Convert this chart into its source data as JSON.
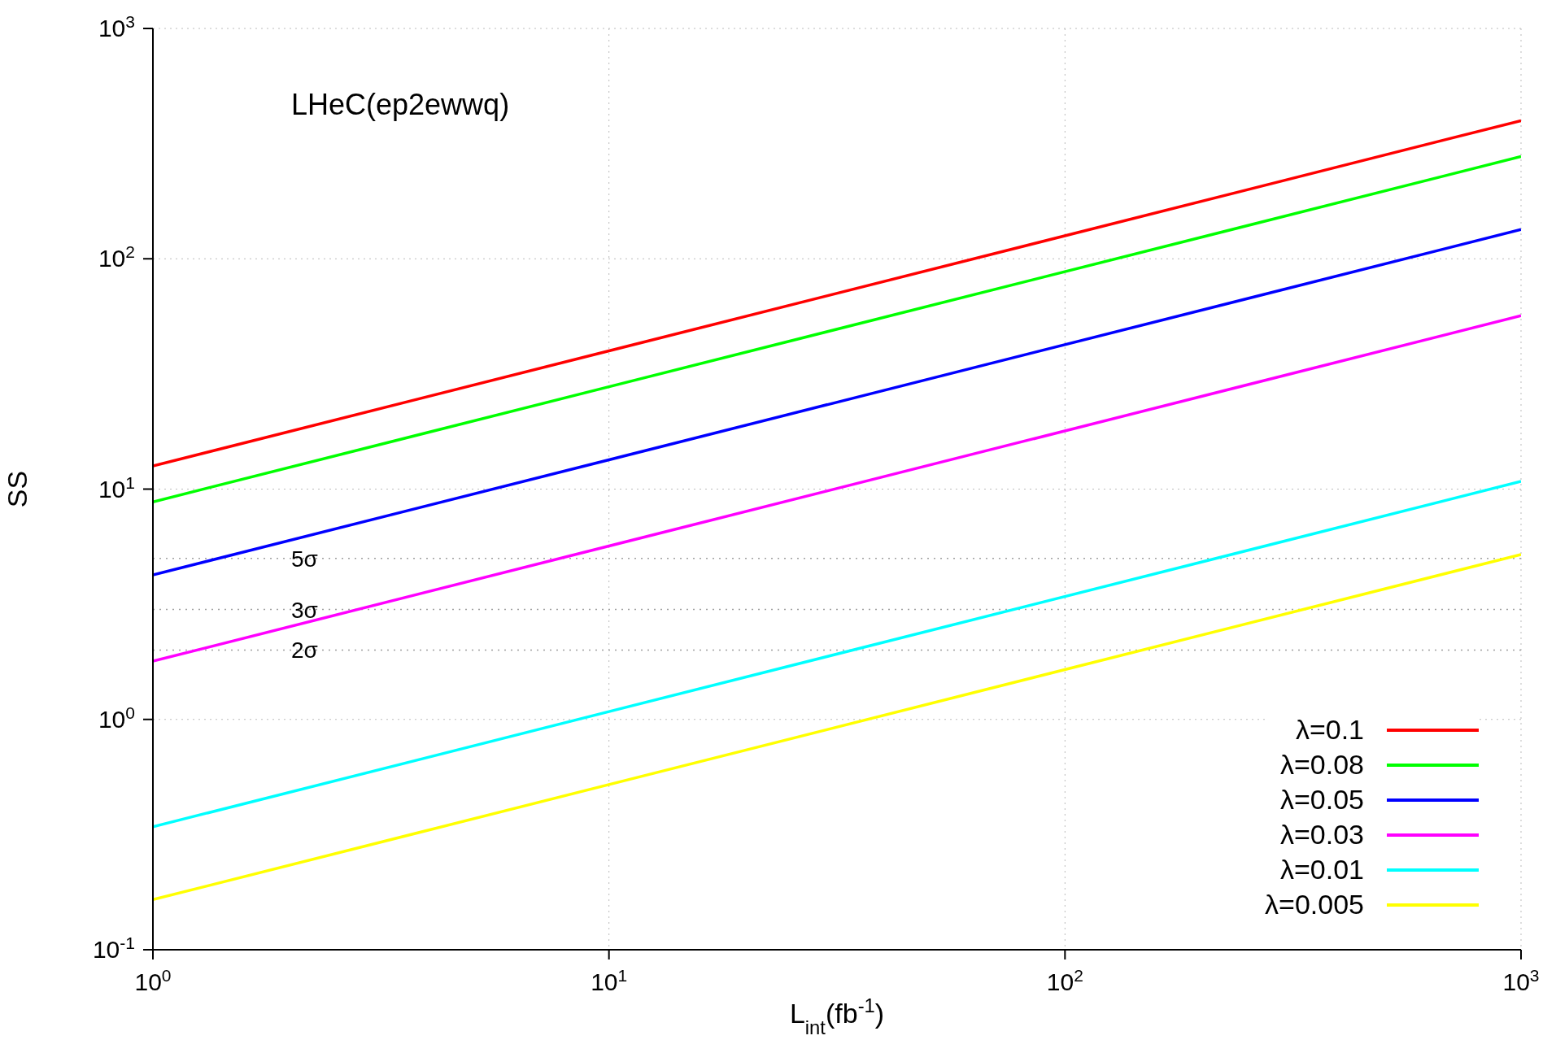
{
  "chart_data": {
    "type": "line",
    "xlabel": "L$_{int}$(fb$^{-1}$)",
    "ylabel": "SS",
    "annotations": [
      "LHeC(ep2ewwq)"
    ],
    "x": [
      1,
      1000
    ],
    "series": [
      {
        "name": "λ=0.1",
        "color": "#ff0000",
        "values": [
          12.6,
          398
        ]
      },
      {
        "name": "λ=0.08",
        "color": "#00ff00",
        "values": [
          8.8,
          278
        ]
      },
      {
        "name": "λ=0.05",
        "color": "#0000ff",
        "values": [
          4.24,
          134
        ]
      },
      {
        "name": "λ=0.03",
        "color": "#ff00ff",
        "values": [
          1.79,
          56.6
        ]
      },
      {
        "name": "λ=0.01",
        "color": "#00ffff",
        "values": [
          0.342,
          10.8
        ]
      },
      {
        "name": "λ=0.005",
        "color": "#ffff00",
        "values": [
          0.165,
          5.2
        ]
      }
    ],
    "ref_lines": [
      {
        "axis": "y",
        "value": 5,
        "label": "5σ",
        "color": "#a0a0a0",
        "line_style": "dotted"
      },
      {
        "axis": "y",
        "value": 3,
        "label": "3σ",
        "color": "#a0a0a0",
        "line_style": "dotted"
      },
      {
        "axis": "y",
        "value": 2,
        "label": "2σ",
        "color": "#a0a0a0",
        "line_style": "dotted"
      }
    ],
    "log": "xy",
    "xlim": [
      1,
      1000
    ],
    "ylim": [
      0.1,
      1000
    ],
    "xticks": [
      {
        "value": 1,
        "label": "10$^{0}$"
      },
      {
        "value": 10,
        "label": "10$^{1}$"
      },
      {
        "value": 100,
        "label": "10$^{2}$"
      },
      {
        "value": 1000,
        "label": "10$^{3}$"
      }
    ],
    "yticks": [
      {
        "value": 0.1,
        "label": "10$^{-1}$"
      },
      {
        "value": 1,
        "label": "10$^{0}$"
      },
      {
        "value": 10,
        "label": "10$^{1}$"
      },
      {
        "value": 100,
        "label": "10$^{2}$"
      },
      {
        "value": 1000,
        "label": "10$^{3}$"
      }
    ],
    "grid": true,
    "legend": "bottom right",
    "marker": "none",
    "line_style": "solid"
  }
}
